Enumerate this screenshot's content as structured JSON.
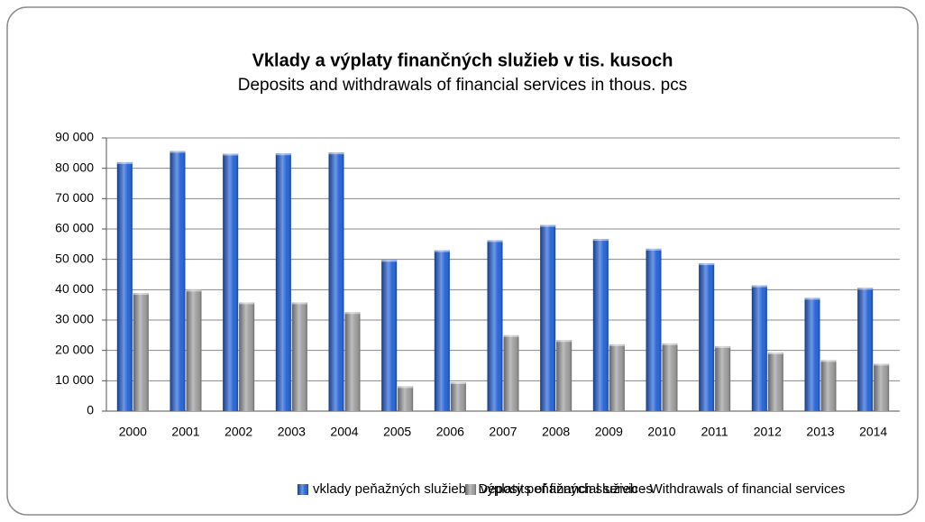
{
  "chart_data": {
    "type": "bar",
    "title": "Vklady a výplaty finančných služieb v tis. kusoch",
    "subtitle": "Deposits and withdrawals of financial services in thous. pcs",
    "categories": [
      "2000",
      "2001",
      "2002",
      "2003",
      "2004",
      "2005",
      "2006",
      "2007",
      "2008",
      "2009",
      "2010",
      "2011",
      "2012",
      "2013",
      "2014"
    ],
    "series": [
      {
        "name": "vklady peňažných služieb - Deposits of financial services",
        "color": "#1f5fd6",
        "values": [
          82000,
          85700,
          84800,
          84900,
          85200,
          49800,
          53000,
          56300,
          61300,
          56700,
          53500,
          48700,
          41400,
          37300,
          40600
        ]
      },
      {
        "name": "výplaty peňažných služieb - Withdrawals of financial services",
        "color": "#9a9a9a",
        "values": [
          38900,
          40000,
          35800,
          35800,
          32600,
          8200,
          9500,
          25000,
          23400,
          22000,
          22300,
          21400,
          19300,
          16800,
          15600
        ]
      }
    ],
    "ylim": [
      0,
      90000
    ],
    "yticks": [
      0,
      {
        "value": 10000,
        "label": "10 000"
      },
      {
        "value": 20000,
        "label": "20 000"
      },
      {
        "value": 30000,
        "label": "30 000"
      },
      {
        "value": 40000,
        "label": "40 000"
      },
      {
        "value": 50000,
        "label": "50 000"
      },
      {
        "value": 60000,
        "label": "60 000"
      },
      {
        "value": 70000,
        "label": "70 000"
      },
      {
        "value": 80000,
        "label": "80 000"
      },
      {
        "value": 90000,
        "label": "90 000"
      }
    ],
    "grid": true,
    "legend": "bottom"
  }
}
